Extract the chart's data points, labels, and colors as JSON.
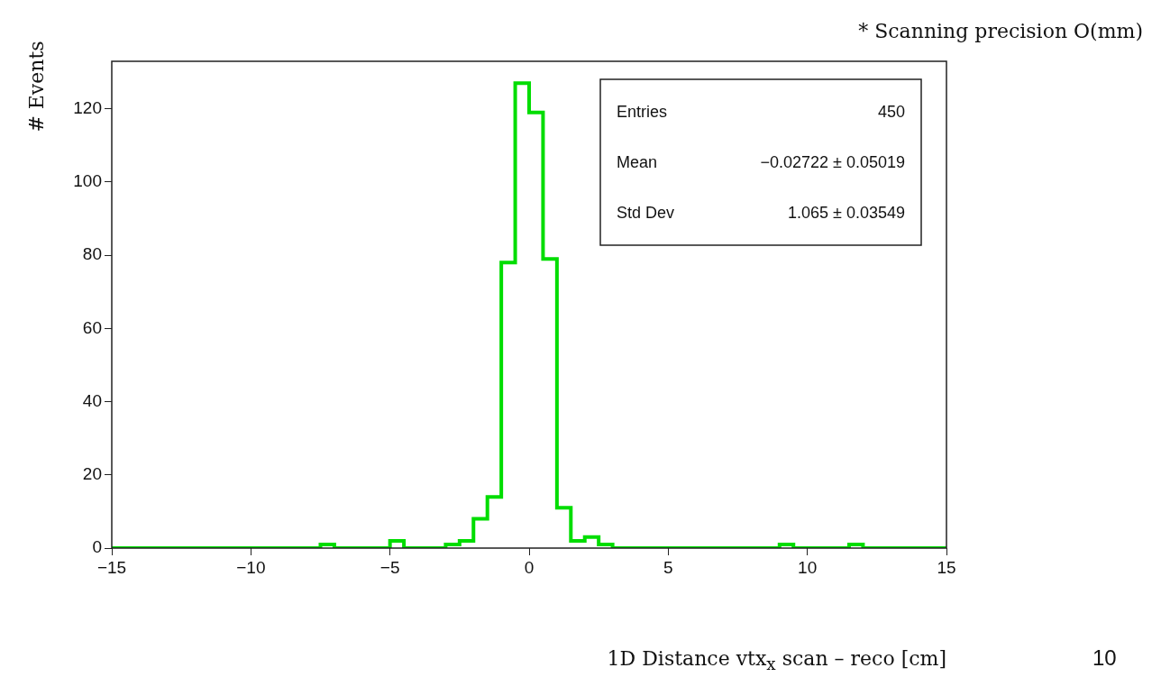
{
  "chart_data": {
    "type": "histogram",
    "xlabel": "1D Distance vtx$_{x}$ scan – reco [cm]",
    "ylabel": "# Events",
    "bins": [
      -15,
      -14.5,
      -14,
      -13.5,
      -13,
      -12.5,
      -12,
      -11.5,
      -11,
      -10.5,
      -10,
      -9.5,
      -9,
      -8.5,
      -8,
      -7.5,
      -7,
      -6.5,
      -6,
      -5.5,
      -5,
      -4.5,
      -4,
      -3.5,
      -3,
      -2.5,
      -2,
      -1.5,
      -1,
      -0.5,
      0,
      0.5,
      1,
      1.5,
      2,
      2.5,
      3,
      3.5,
      4,
      4.5,
      5,
      5.5,
      6,
      6.5,
      7,
      7.5,
      8,
      8.5,
      9,
      9.5,
      10,
      10.5,
      11,
      11.5,
      12,
      12.5,
      13,
      13.5,
      14,
      14.5,
      15
    ],
    "values": [
      0,
      0,
      0,
      0,
      0,
      0,
      0,
      0,
      0,
      0,
      0,
      0,
      0,
      0,
      0,
      1,
      0,
      0,
      0,
      0,
      2,
      0,
      0,
      0,
      1,
      2,
      8,
      14,
      78,
      127,
      119,
      79,
      11,
      2,
      3,
      1,
      0,
      0,
      0,
      0,
      0,
      0,
      0,
      0,
      0,
      0,
      0,
      0,
      1,
      0,
      0,
      0,
      0,
      1,
      0,
      0,
      0,
      0,
      0,
      0
    ],
    "color": "#00dd00",
    "xlim": [
      -15,
      15
    ],
    "xticks": [
      {
        "value": -15,
        "label": "−15"
      },
      {
        "value": -10,
        "label": "−10"
      },
      {
        "value": -5,
        "label": "−5"
      },
      0,
      5,
      10,
      15
    ],
    "ylim": [
      0,
      133
    ],
    "yticks": [
      0,
      20,
      40,
      60,
      80,
      100,
      120
    ],
    "grid": false,
    "legend": false,
    "annotations": [
      "Entries",
      "450",
      "Mean",
      "−0.02722 ± 0.05019",
      "Std Dev",
      "1.065 ± 0.03549",
      "* Scanning precision O(mm)",
      "10"
    ]
  }
}
